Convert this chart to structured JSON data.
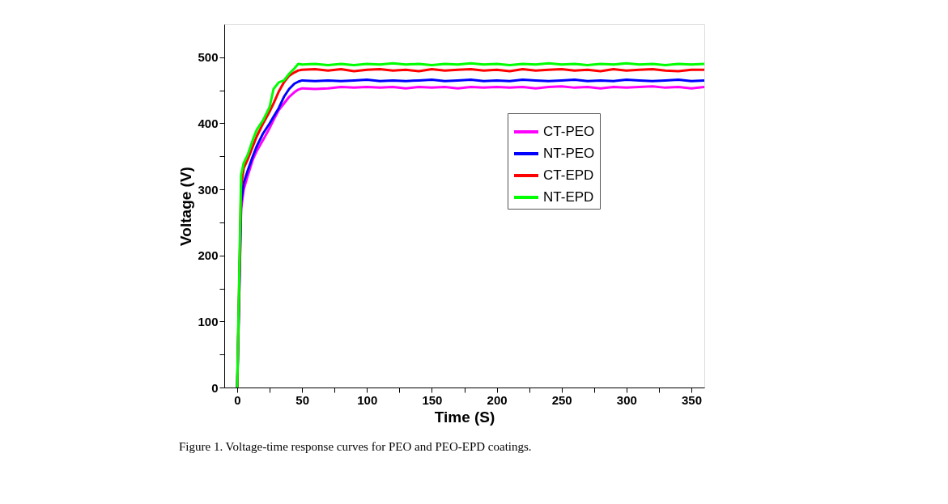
{
  "chart_data": {
    "type": "line",
    "xlabel": "Time (S)",
    "ylabel": "Voltage (V)",
    "x": [
      0,
      3,
      5,
      8,
      12,
      15,
      20,
      25,
      28,
      32,
      36,
      40,
      44,
      47,
      50,
      60,
      70,
      80,
      90,
      100,
      110,
      120,
      130,
      140,
      150,
      160,
      170,
      180,
      190,
      200,
      210,
      220,
      230,
      240,
      250,
      260,
      270,
      280,
      290,
      300,
      310,
      320,
      330,
      340,
      350,
      360
    ],
    "series": [
      {
        "name": "CT-PEO",
        "color": "#ff00ff",
        "values": [
          0,
          270,
          300,
          320,
          345,
          358,
          375,
          393,
          405,
          420,
          430,
          440,
          447,
          451,
          453,
          452,
          453,
          455,
          454,
          455,
          454,
          455,
          453,
          455,
          454,
          455,
          453,
          455,
          454,
          455,
          454,
          455,
          453,
          455,
          456,
          454,
          455,
          453,
          455,
          454,
          455,
          456,
          454,
          455,
          453,
          455
        ]
      },
      {
        "name": "NT-PEO",
        "color": "#0000ff",
        "values": [
          0,
          280,
          310,
          328,
          350,
          365,
          385,
          400,
          410,
          423,
          440,
          452,
          460,
          463,
          465,
          464,
          465,
          464,
          465,
          466,
          464,
          465,
          464,
          465,
          466,
          464,
          465,
          466,
          464,
          465,
          464,
          466,
          465,
          464,
          465,
          466,
          464,
          465,
          464,
          466,
          465,
          464,
          465,
          466,
          464,
          465
        ]
      },
      {
        "name": "CT-EPD",
        "color": "#ff0000",
        "values": [
          0,
          305,
          332,
          345,
          365,
          380,
          400,
          418,
          430,
          448,
          462,
          472,
          477,
          480,
          481,
          482,
          480,
          482,
          479,
          481,
          482,
          480,
          481,
          479,
          482,
          480,
          481,
          482,
          480,
          481,
          479,
          482,
          480,
          481,
          482,
          480,
          481,
          479,
          482,
          480,
          481,
          482,
          480,
          479,
          481,
          481
        ]
      },
      {
        "name": "NT-EPD",
        "color": "#00ff00",
        "values": [
          0,
          322,
          340,
          352,
          375,
          390,
          405,
          425,
          452,
          462,
          465,
          475,
          483,
          490,
          489,
          490,
          488,
          490,
          488,
          490,
          489,
          491,
          489,
          490,
          488,
          490,
          489,
          491,
          489,
          490,
          488,
          490,
          489,
          491,
          489,
          490,
          488,
          490,
          489,
          491,
          489,
          490,
          488,
          490,
          489,
          490
        ]
      }
    ],
    "xlim": [
      -10,
      360
    ],
    "ylim": [
      0,
      550
    ],
    "xticks": [
      0,
      {
        "value": 25,
        "label": null
      },
      50,
      {
        "value": 75,
        "label": null
      },
      100,
      {
        "value": 125,
        "label": null
      },
      150,
      {
        "value": 175,
        "label": null
      },
      200,
      {
        "value": 225,
        "label": null
      },
      250,
      {
        "value": 275,
        "label": null
      },
      300,
      {
        "value": 325,
        "label": null
      },
      350
    ],
    "yticks": [
      0,
      {
        "value": 50,
        "label": null
      },
      100,
      {
        "value": 150,
        "label": null
      },
      200,
      {
        "value": 250,
        "label": null
      },
      300,
      {
        "value": 350,
        "label": null
      },
      400,
      {
        "value": 450,
        "label": null
      },
      500
    ],
    "grid": false,
    "legend": "right",
    "line_style": "solid",
    "marker": "none",
    "annotations": [
      "Figure 1. Voltage-time response curves for PEO and PEO-EPD coatings."
    ]
  }
}
